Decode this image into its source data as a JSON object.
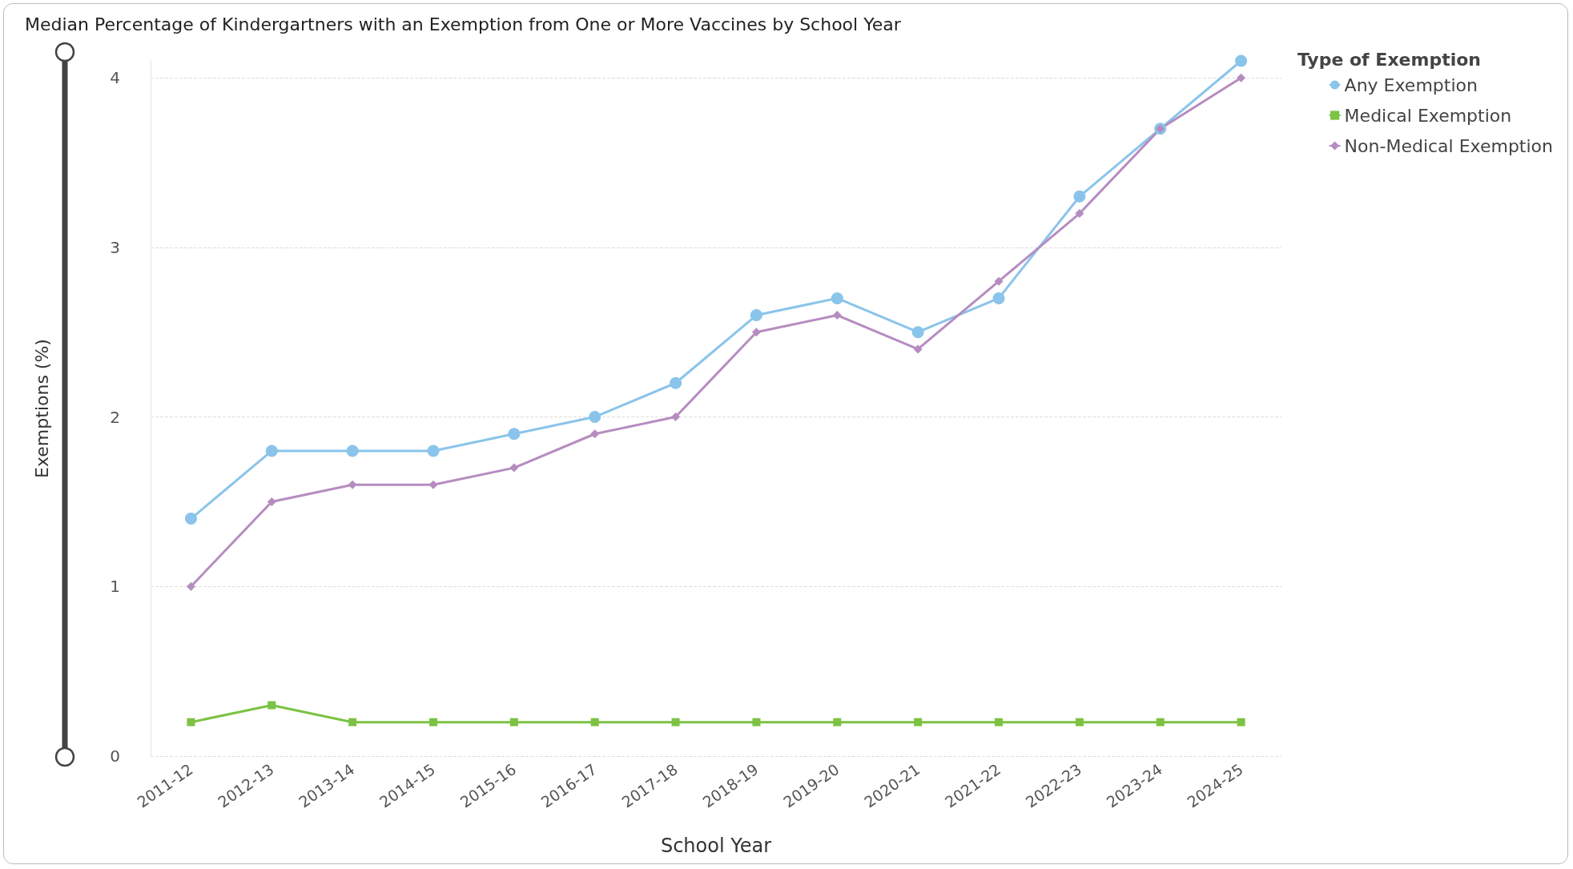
{
  "chart_data": {
    "type": "line",
    "title": "Median Percentage of Kindergartners with an Exemption from One or More Vaccines by School Year",
    "xlabel": "School Year",
    "ylabel": "Exemptions (%)",
    "legend_title": "Type of Exemption",
    "categories": [
      "2011-12",
      "2012-13",
      "2013-14",
      "2014-15",
      "2015-16",
      "2016-17",
      "2017-18",
      "2018-19",
      "2019-20",
      "2020-21",
      "2021-22",
      "2022-23",
      "2023-24",
      "2024-25"
    ],
    "series": [
      {
        "name": "Any Exemption",
        "color": "#8ac4ea",
        "marker": "circle",
        "values": [
          1.4,
          1.8,
          1.8,
          1.8,
          1.9,
          2.0,
          2.2,
          2.6,
          2.7,
          2.5,
          2.7,
          3.3,
          3.7,
          4.1
        ]
      },
      {
        "name": "Medical Exemption",
        "color": "#7cc243",
        "marker": "square",
        "values": [
          0.2,
          0.3,
          0.2,
          0.2,
          0.2,
          0.2,
          0.2,
          0.2,
          0.2,
          0.2,
          0.2,
          0.2,
          0.2,
          0.2
        ]
      },
      {
        "name": "Non-Medical Exemption",
        "color": "#b68cc0",
        "marker": "diamond",
        "values": [
          1.0,
          1.5,
          1.6,
          1.6,
          1.7,
          1.9,
          2.0,
          2.5,
          2.6,
          2.4,
          2.8,
          3.2,
          3.7,
          4.0
        ]
      }
    ],
    "ylim": [
      0,
      4.1
    ],
    "yticks": [
      0,
      1,
      2,
      3,
      4
    ],
    "grid": "y",
    "legend": "top right"
  }
}
